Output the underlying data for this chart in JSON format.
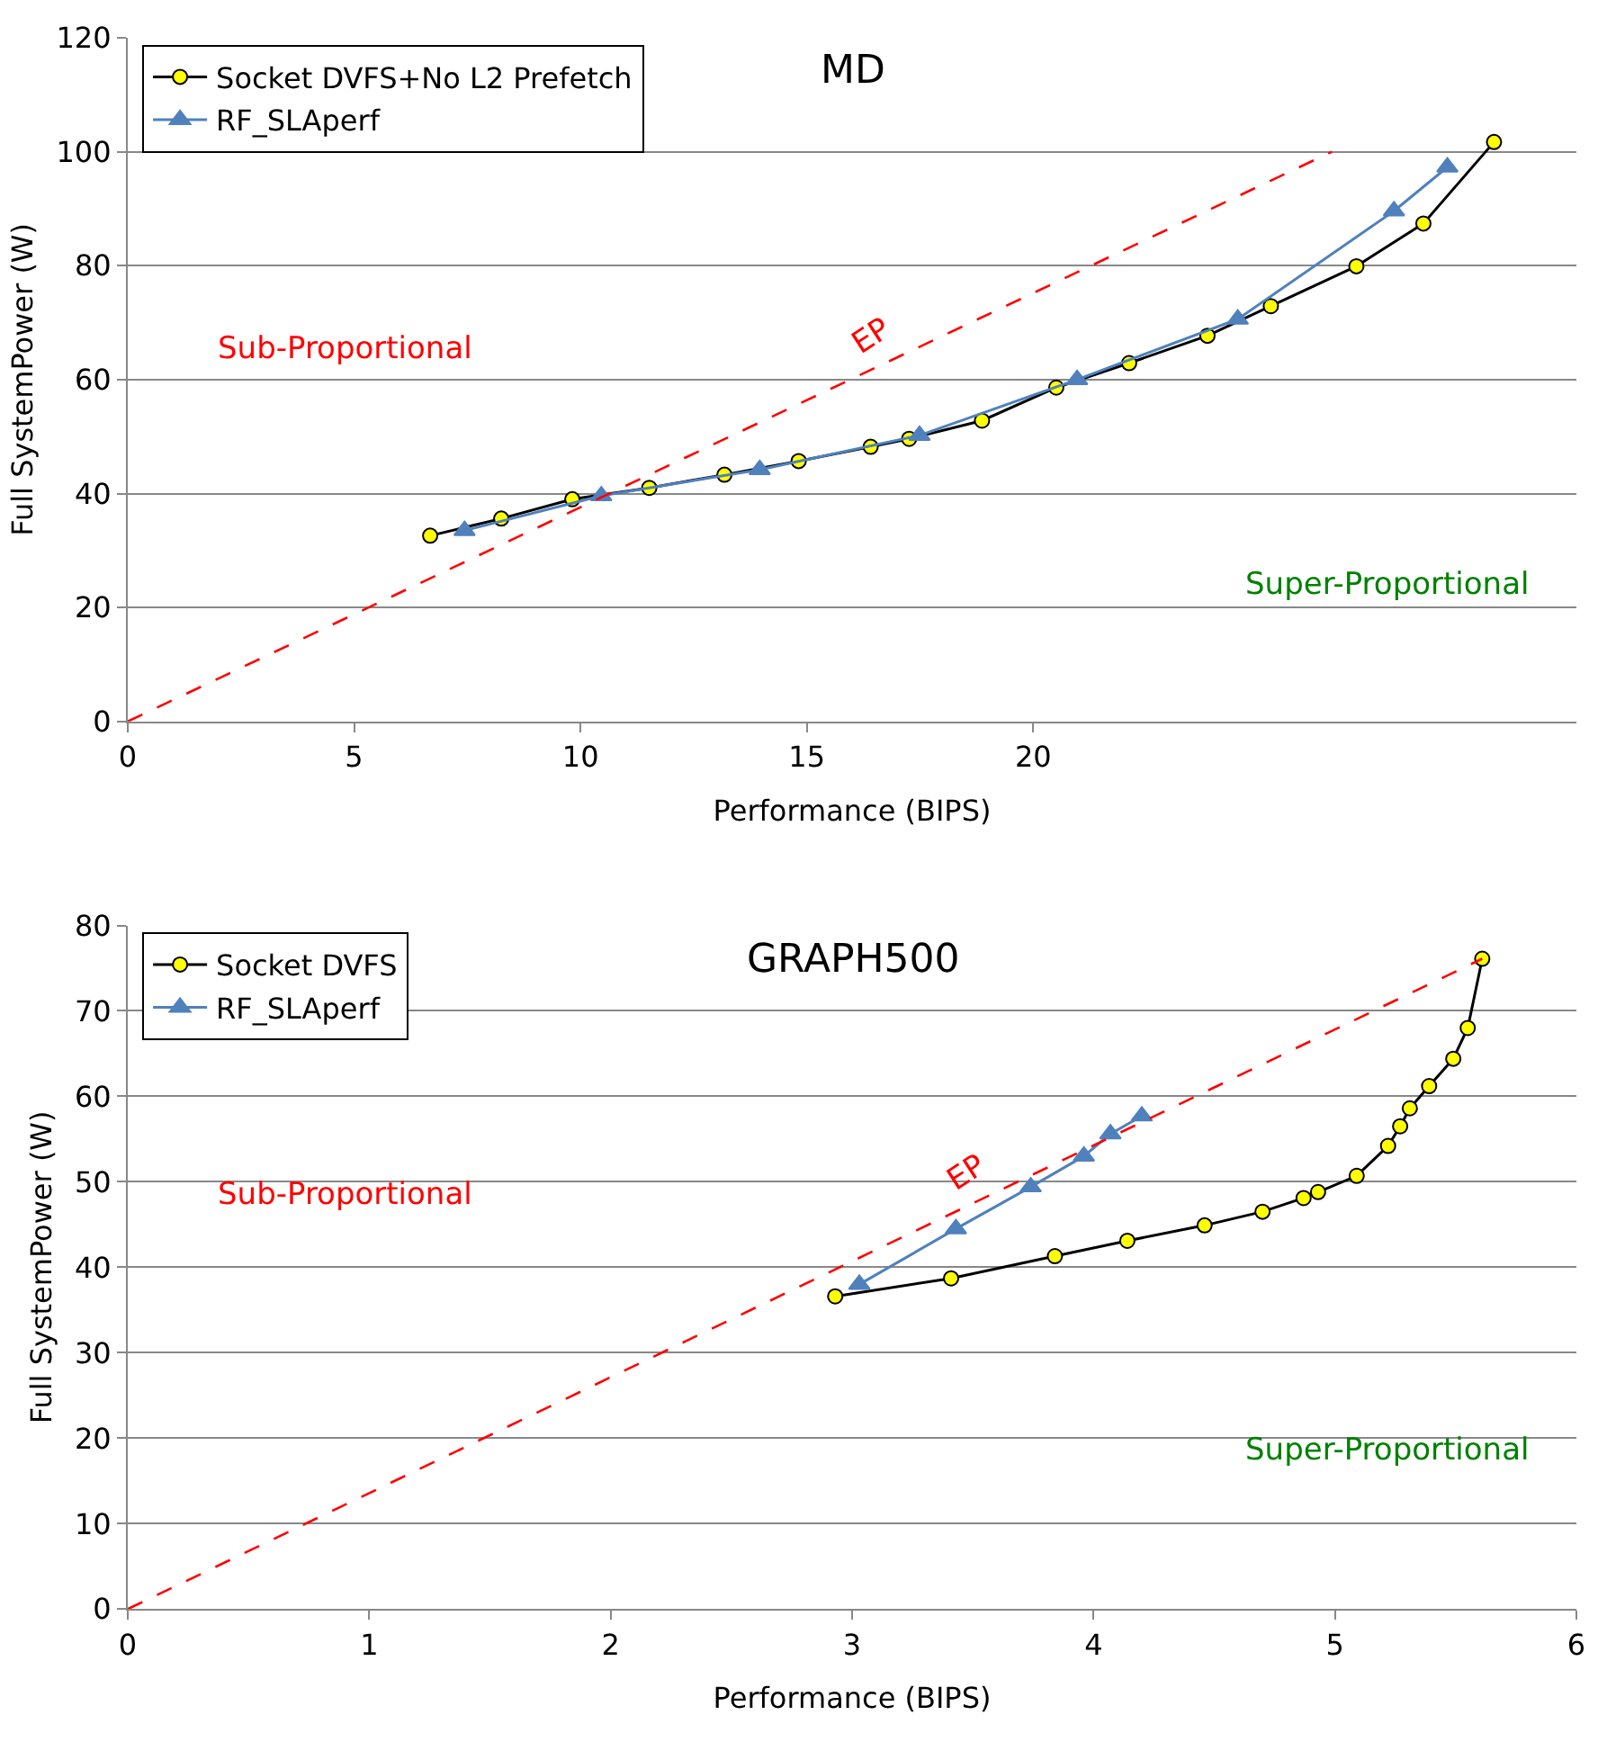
{
  "chart_data": [
    {
      "type": "line",
      "title": "MD",
      "xlabel": "Performance (BIPS)",
      "ylabel": "Full SystemPower (W)",
      "xlim": [
        0,
        32
      ],
      "xticks": [
        0,
        5,
        10,
        15,
        20
      ],
      "ylim": [
        0,
        120
      ],
      "yticks": [
        0,
        20,
        40,
        60,
        80,
        100,
        120
      ],
      "grid": "y",
      "legend": "top left",
      "series": [
        {
          "name": "Socket DVFS+No L2 Prefetch",
          "color": "#000000",
          "marker": "circle",
          "x": [
            6.68,
            8.25,
            9.82,
            11.52,
            13.18,
            14.82,
            16.41,
            17.26,
            18.87,
            20.51,
            22.12,
            23.85,
            25.25,
            27.14,
            28.62,
            30.18
          ],
          "values": [
            32.6,
            35.6,
            39.0,
            41.0,
            43.3,
            45.7,
            48.2,
            49.6,
            52.8,
            58.6,
            62.9,
            67.7,
            72.9,
            79.9,
            87.4,
            101.7
          ]
        },
        {
          "name": "RF_SLAperf",
          "color": "#4f81bd",
          "marker": "triangle",
          "x": [
            7.44,
            10.46,
            13.96,
            17.49,
            20.97,
            24.52,
            27.97,
            29.15
          ],
          "values": [
            33.5,
            39.6,
            44.2,
            50.2,
            60.0,
            70.6,
            89.6,
            97.3
          ]
        },
        {
          "name": "EP",
          "color": "#ff0000",
          "line_style": "dashed",
          "marker": "none",
          "x": [
            0,
            26.6
          ],
          "values": [
            0,
            100
          ]
        }
      ],
      "annotations": [
        "Sub-Proportional",
        "Super-Proportional"
      ]
    },
    {
      "type": "line",
      "title": "GRAPH500",
      "xlabel": "Performance (BIPS)",
      "ylabel": "Full SystemPower (W)",
      "xlim": [
        0,
        6
      ],
      "xticks": [
        0,
        1,
        2,
        3,
        4,
        5,
        6
      ],
      "ylim": [
        0,
        80
      ],
      "yticks": [
        0,
        10,
        20,
        30,
        40,
        50,
        60,
        70,
        80
      ],
      "grid": "y",
      "legend": "top left",
      "series": [
        {
          "name": "Socket DVFS",
          "color": "#000000",
          "marker": "circle",
          "x": [
            2.93,
            3.41,
            3.84,
            4.14,
            4.46,
            4.7,
            4.87,
            4.93,
            5.09,
            5.22,
            5.27,
            5.31,
            5.39,
            5.49,
            5.55,
            5.61
          ],
          "values": [
            36.6,
            38.7,
            41.3,
            43.1,
            44.9,
            46.5,
            48.1,
            48.8,
            50.7,
            54.2,
            56.5,
            58.6,
            61.2,
            64.4,
            68.0,
            76.1
          ]
        },
        {
          "name": "RF_SLAperf",
          "color": "#4f81bd",
          "marker": "triangle",
          "x": [
            3.03,
            3.43,
            3.74,
            3.96,
            4.07,
            4.2
          ],
          "values": [
            38.0,
            44.5,
            49.4,
            53.0,
            55.6,
            57.7
          ]
        },
        {
          "name": "EP",
          "color": "#ff0000",
          "line_style": "dashed",
          "marker": "none",
          "x": [
            0,
            5.61
          ],
          "values": [
            0,
            76.1
          ]
        }
      ],
      "annotations": [
        "Sub-Proportional",
        "Super-Proportional"
      ]
    }
  ]
}
